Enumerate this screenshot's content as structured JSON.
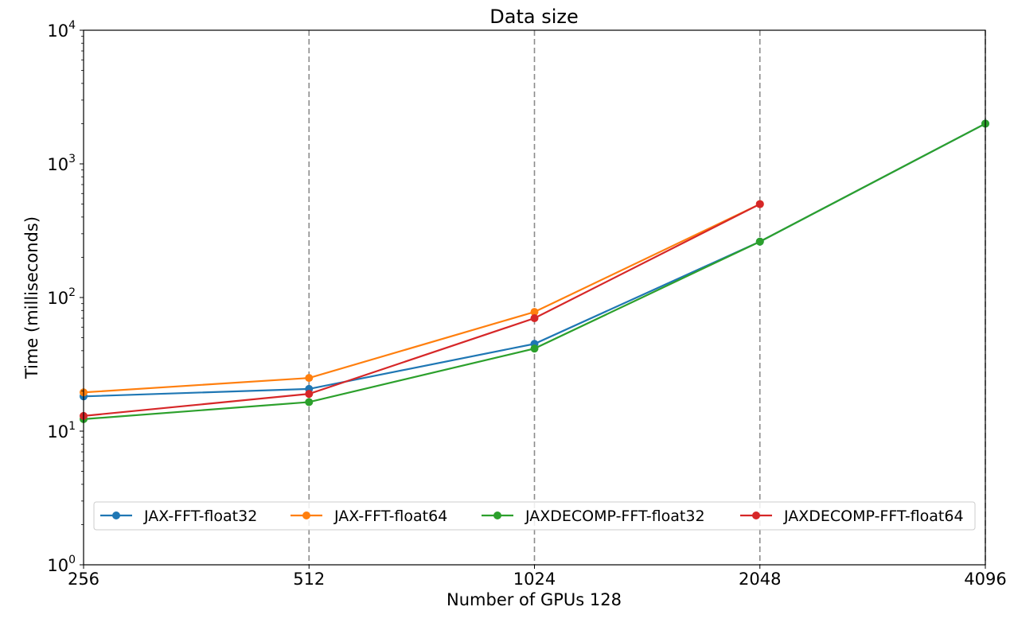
{
  "chart_data": {
    "type": "line",
    "title": "Data size",
    "xlabel": "Number of GPUs 128",
    "ylabel": "Time (milliseconds)",
    "x_scale": "log2",
    "y_scale": "log10",
    "x": [
      256,
      512,
      1024,
      2048,
      4096
    ],
    "xticks": [
      "256",
      "512",
      "1024",
      "2048",
      "4096"
    ],
    "xlim": [
      256,
      4096
    ],
    "ylim": [
      1,
      10000
    ],
    "yticks": [
      {
        "value": 1,
        "base": "10",
        "exp": "0"
      },
      {
        "value": 10,
        "base": "10",
        "exp": "1"
      },
      {
        "value": 100,
        "base": "10",
        "exp": "2"
      },
      {
        "value": 1000,
        "base": "10",
        "exp": "3"
      },
      {
        "value": 10000,
        "base": "10",
        "exp": "4"
      }
    ],
    "grid": "vertical dashed at x ticks",
    "legend_position": "lower center",
    "series": [
      {
        "name": "JAX-FFT-float32",
        "color": "#1f77b4",
        "values": [
          18.2,
          20.7,
          45.0,
          262.0,
          2000.0
        ]
      },
      {
        "name": "JAX-FFT-float64",
        "color": "#ff7f0e",
        "values": [
          19.5,
          25.0,
          78.0,
          500.0,
          null
        ]
      },
      {
        "name": "JAXDECOMP-FFT-float32",
        "color": "#2ca02c",
        "values": [
          12.3,
          16.5,
          41.5,
          262.0,
          2000.0
        ]
      },
      {
        "name": "JAXDECOMP-FFT-float64",
        "color": "#d62728",
        "values": [
          13.0,
          19.0,
          70.0,
          500.0,
          null
        ]
      }
    ]
  }
}
